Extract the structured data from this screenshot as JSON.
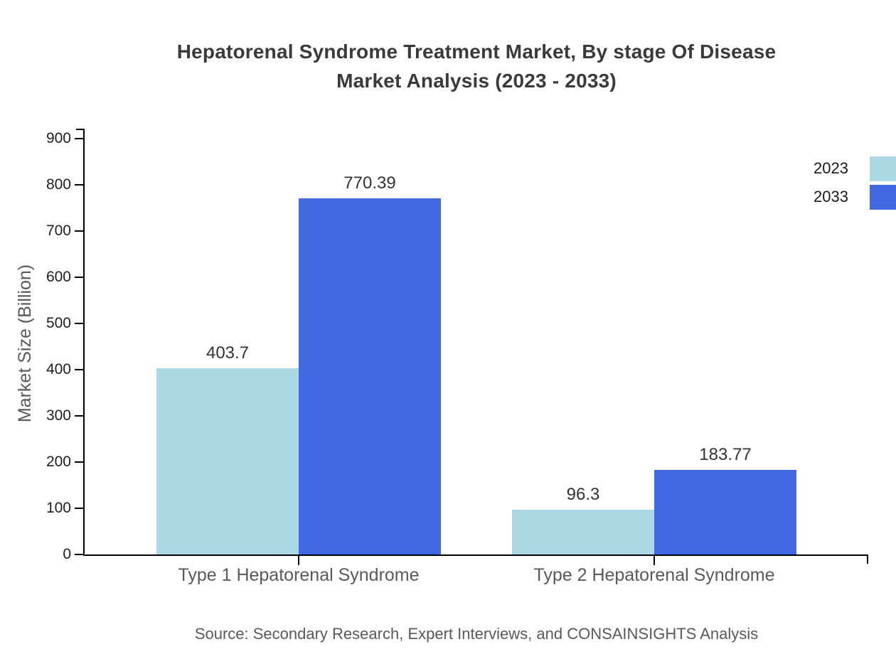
{
  "page": {
    "background": "#ffffff"
  },
  "header": {
    "title_line1": "Hepatorenal Syndrome Treatment Market, By stage Of Disease",
    "title_line2": "Market Analysis (2023 - 2033)"
  },
  "chart_data": {
    "type": "bar",
    "title": "Hepatorenal Syndrome Treatment Market, By stage Of Disease Market Analysis (2023 - 2033)",
    "categories": [
      "Type 1 Hepatorenal Syndrome",
      "Type 2 Hepatorenal Syndrome"
    ],
    "series": [
      {
        "name": "2023",
        "color": "#ADD8E6",
        "values": [
          403.7,
          96.3
        ]
      },
      {
        "name": "2033",
        "color": "#4169E1",
        "values": [
          770.39,
          183.77
        ]
      }
    ],
    "value_labels": [
      [
        "403.7",
        "96.3"
      ],
      [
        "770.39",
        "183.77"
      ]
    ],
    "xlabel": "",
    "ylabel": "Market Size (Billion)",
    "ylim": [
      0,
      900
    ],
    "yticks": [
      0,
      100,
      200,
      300,
      400,
      500,
      600,
      700,
      800,
      900
    ],
    "grid": false,
    "legend_position": "top-right"
  },
  "footer": {
    "source": "Source: Secondary Research, Expert Interviews, and CONSAINSIGHTS Analysis"
  },
  "colors": {
    "series_2023": "#ADD8E6",
    "series_2033": "#4169E1",
    "axis_line": "#000000",
    "title_text": "#3a3a3a",
    "tick_text": "#1f1f1f",
    "category_text": "#595959",
    "value_text": "#333333",
    "source_text": "#595959"
  }
}
